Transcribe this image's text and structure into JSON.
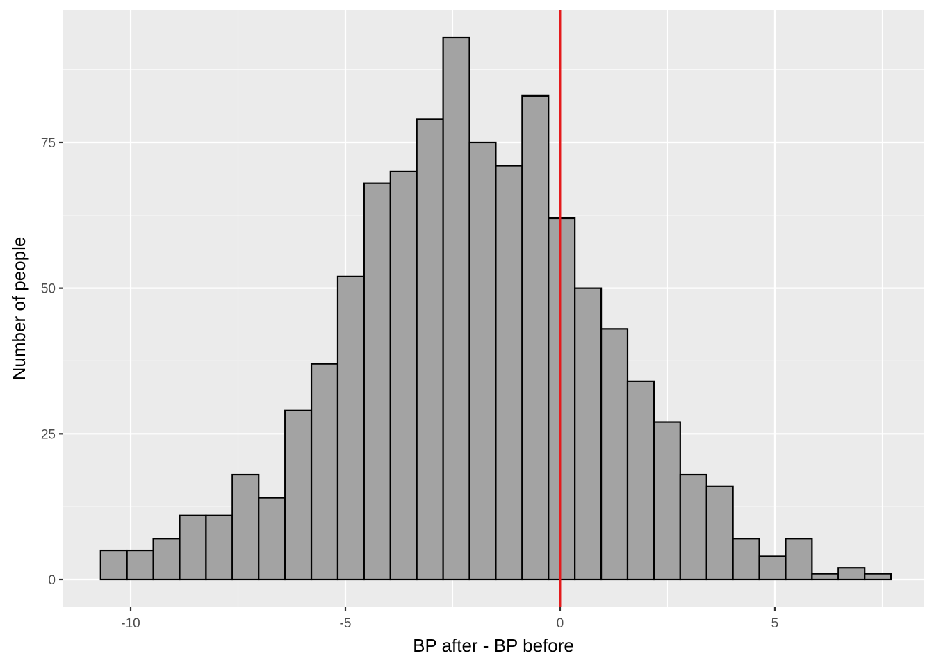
{
  "chart_data": {
    "type": "bar",
    "title": "",
    "xlabel": "BP after - BP before",
    "ylabel": "Number of people",
    "xlim": [
      -11.57,
      8.48
    ],
    "ylim": [
      -4.65,
      97.65
    ],
    "x_ticks": [
      {
        "value": -10,
        "label": "-10"
      },
      {
        "value": -5,
        "label": "-5"
      },
      {
        "value": 0,
        "label": "0"
      },
      {
        "value": 5,
        "label": "5"
      }
    ],
    "y_ticks": [
      {
        "value": 0,
        "label": "0"
      },
      {
        "value": 25,
        "label": "25"
      },
      {
        "value": 50,
        "label": "50"
      },
      {
        "value": 75,
        "label": "75"
      }
    ],
    "grid": true,
    "bins": {
      "first_bin_left": -10.7,
      "bin_width": 0.6135,
      "counts": [
        5,
        5,
        7,
        11,
        11,
        18,
        14,
        29,
        37,
        52,
        68,
        70,
        79,
        93,
        75,
        71,
        83,
        62,
        50,
        43,
        34,
        27,
        18,
        16,
        7,
        4,
        7,
        1,
        2,
        1
      ]
    },
    "reference_line": {
      "x": 0,
      "color": "#e41a1c"
    },
    "colors": {
      "panel_background": "#ebebeb",
      "grid_line": "#ffffff",
      "bar_fill": "#a3a3a3",
      "bar_outline": "#000000"
    }
  }
}
